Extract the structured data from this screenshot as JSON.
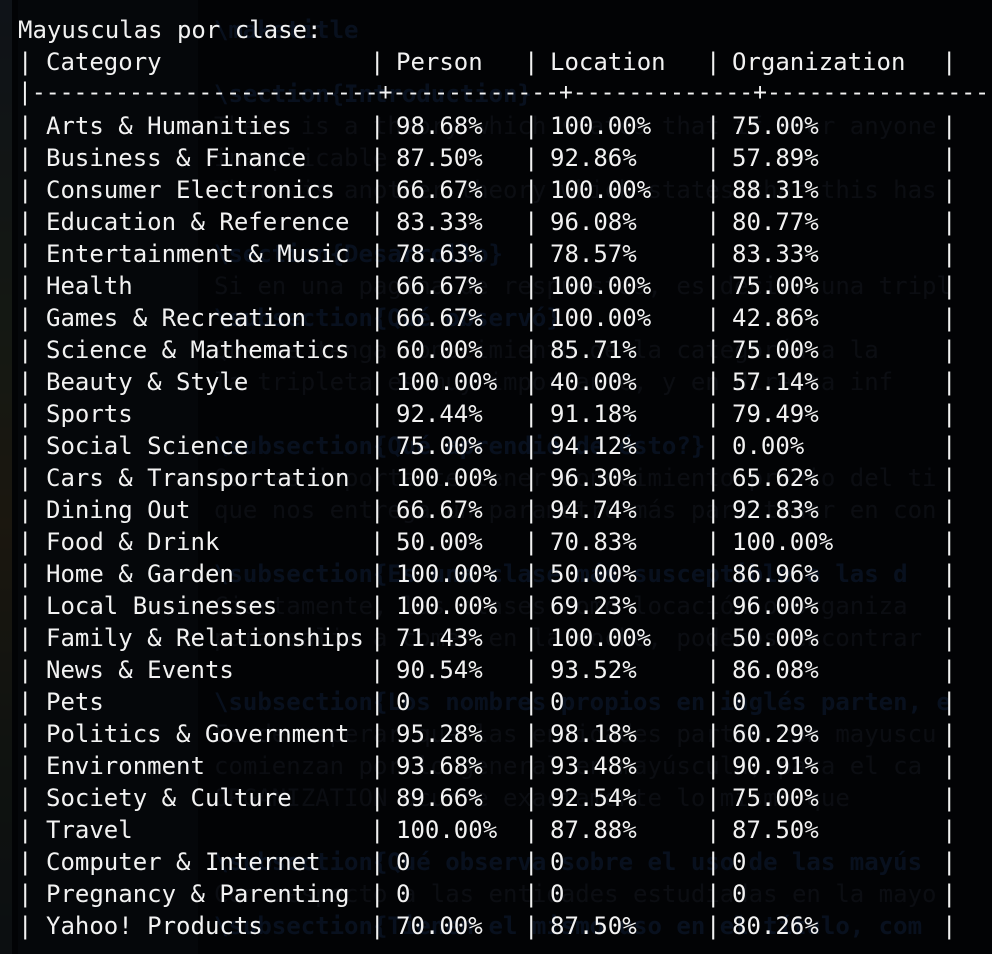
{
  "background_editor": {
    "lines": [
      {
        "row": 0,
        "text": "\\maketitle",
        "kind": "cmd"
      },
      {
        "row": 2,
        "text": "\\section{Introduction}",
        "kind": "cmd"
      },
      {
        "row": 3,
        "text": "There is a theory which states that if ever anyone",
        "kind": "plain"
      },
      {
        "row": 4,
        "text": "inexplicable",
        "kind": "plain"
      },
      {
        "row": 5,
        "text": "There is another theory which states that this has",
        "kind": "plain"
      },
      {
        "row": 7,
        "text": "\\section{Desarrollo}",
        "kind": "cmd"
      },
      {
        "row": 8,
        "text": "Si en una pagina de respuestas, es decir, una tripl",
        "kind": "plain"
      },
      {
        "row": 9,
        "text": "\\subsection{Qué observó}",
        "kind": "cmd"
      },
      {
        "row": 10,
        "text": "Que se tenga conocimiento de la categoría a la",
        "kind": "plain"
      },
      {
        "row": 11,
        "text": "la tripleta es muy importante, y en directa inf",
        "kind": "plain"
      },
      {
        "row": 13,
        "text": "\\subsection{Qué aprendió de ésto?}",
        "kind": "cmd"
      },
      {
        "row": 14,
        "text": "Que es importante tener conocimiento previo del ti",
        "kind": "plain"
      },
      {
        "row": 15,
        "text": "que nos entrega un parametro más para tener en con",
        "kind": "plain"
      },
      {
        "row": 17,
        "text": "\\subsection{Es una clase más susceptible a las d",
        "kind": "cmd"
      },
      {
        "row": 18,
        "text": "Ciertamente, las clases como locación o organiza",
        "kind": "plain"
      },
      {
        "row": 19,
        "text": "para salir a comer en la noche, podemos encontrar",
        "kind": "plain"
      },
      {
        "row": 21,
        "text": "\\subsection{Los nombres propios en inglés parten, e",
        "kind": "cmd"
      },
      {
        "row": 22,
        "text": "Es de esperar que las entidades partan con mayuscu",
        "kind": "plain"
      },
      {
        "row": 23,
        "text": "comienzan por lo general en mayúscula, para el ca",
        "kind": "plain"
      },
      {
        "row": 24,
        "text": "ORGANIZATION ocurre exactamente lo mismo que",
        "kind": "plain"
      },
      {
        "row": 26,
        "text": "\\subsection{Qué observa sobre el uso de las mayús",
        "kind": "cmd"
      },
      {
        "row": 27,
        "text": "Con respecto a las entidades estudiadas en la mayo",
        "kind": "plain"
      },
      {
        "row": 28,
        "text": "\\subsection{Tienen el mismo uso en el título, com",
        "kind": "cmd"
      }
    ]
  },
  "terminal": {
    "title": "Mayusculas por clase:",
    "pipe": "|",
    "separator": "|-------------------------+------------+-------------+-----------------|",
    "headers": {
      "category": "Category",
      "person": "Person",
      "location": "Location",
      "organization": "Organization"
    },
    "rows": [
      {
        "category": "Arts & Humanities",
        "person": "98.68%",
        "location": "100.00%",
        "organization": "75.00%"
      },
      {
        "category": "Business & Finance",
        "person": "87.50%",
        "location": "92.86%",
        "organization": "57.89%"
      },
      {
        "category": "Consumer Electronics",
        "person": "66.67%",
        "location": "100.00%",
        "organization": "88.31%"
      },
      {
        "category": "Education & Reference",
        "person": "83.33%",
        "location": "96.08%",
        "organization": "80.77%"
      },
      {
        "category": "Entertainment & Music",
        "person": "78.63%",
        "location": "78.57%",
        "organization": "83.33%"
      },
      {
        "category": "Health",
        "person": "66.67%",
        "location": "100.00%",
        "organization": "75.00%"
      },
      {
        "category": "Games & Recreation",
        "person": "66.67%",
        "location": "100.00%",
        "organization": "42.86%"
      },
      {
        "category": "Science & Mathematics",
        "person": "60.00%",
        "location": "85.71%",
        "organization": "75.00%"
      },
      {
        "category": "Beauty & Style",
        "person": "100.00%",
        "location": "40.00%",
        "organization": "57.14%"
      },
      {
        "category": "Sports",
        "person": "92.44%",
        "location": "91.18%",
        "organization": "79.49%"
      },
      {
        "category": "Social Science",
        "person": "75.00%",
        "location": "94.12%",
        "organization": "0.00%"
      },
      {
        "category": "Cars & Transportation",
        "person": "100.00%",
        "location": "96.30%",
        "organization": "65.62%"
      },
      {
        "category": "Dining Out",
        "person": "66.67%",
        "location": "94.74%",
        "organization": "92.83%"
      },
      {
        "category": "Food & Drink",
        "person": "50.00%",
        "location": "70.83%",
        "organization": "100.00%"
      },
      {
        "category": "Home & Garden",
        "person": "100.00%",
        "location": "50.00%",
        "organization": "86.96%"
      },
      {
        "category": "Local Businesses",
        "person": "100.00%",
        "location": "69.23%",
        "organization": "96.00%"
      },
      {
        "category": "Family & Relationships",
        "person": "71.43%",
        "location": "100.00%",
        "organization": "50.00%"
      },
      {
        "category": "News & Events",
        "person": "90.54%",
        "location": "93.52%",
        "organization": "86.08%"
      },
      {
        "category": "Pets",
        "person": "0",
        "location": "0",
        "organization": "0"
      },
      {
        "category": "Politics & Government",
        "person": "95.28%",
        "location": "98.18%",
        "organization": "60.29%"
      },
      {
        "category": "Environment",
        "person": "93.68%",
        "location": "93.48%",
        "organization": "90.91%"
      },
      {
        "category": "Society & Culture",
        "person": "89.66%",
        "location": "92.54%",
        "organization": "75.00%"
      },
      {
        "category": "Travel",
        "person": "100.00%",
        "location": "87.88%",
        "organization": "87.50%"
      },
      {
        "category": "Computer & Internet",
        "person": "0",
        "location": "0",
        "organization": "0"
      },
      {
        "category": "Pregnancy & Parenting",
        "person": "0",
        "location": "0",
        "organization": "0"
      },
      {
        "category": "Yahoo! Products",
        "person": "70.00%",
        "location": "87.50%",
        "organization": "80.26%"
      }
    ]
  }
}
